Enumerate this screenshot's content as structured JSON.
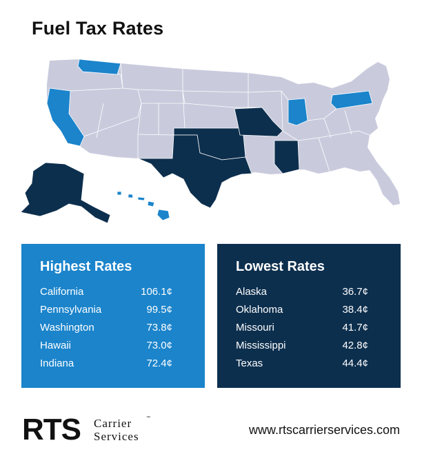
{
  "title": "Fuel Tax Rates",
  "map": {
    "colors": {
      "background_states": "#c9cbdd",
      "highest": "#1b84cb",
      "lowest": "#0d2f4e",
      "borders": "#ffffff"
    },
    "highlighted_states": {
      "highest": [
        "California",
        "Pennsylvania",
        "Washington",
        "Hawaii",
        "Indiana"
      ],
      "lowest": [
        "Alaska",
        "Oklahoma",
        "Missouri",
        "Mississippi",
        "Texas"
      ]
    }
  },
  "highest": {
    "heading": "Highest Rates",
    "rows": [
      {
        "state": "California",
        "rate": "106.1¢"
      },
      {
        "state": "Pennsylvania",
        "rate": "99.5¢"
      },
      {
        "state": "Washington",
        "rate": "73.8¢"
      },
      {
        "state": "Hawaii",
        "rate": "73.0¢"
      },
      {
        "state": "Indiana",
        "rate": "72.4¢"
      }
    ]
  },
  "lowest": {
    "heading": "Lowest Rates",
    "rows": [
      {
        "state": "Alaska",
        "rate": "36.7¢"
      },
      {
        "state": "Oklahoma",
        "rate": "38.4¢"
      },
      {
        "state": "Missouri",
        "rate": "41.7¢"
      },
      {
        "state": "Mississippi",
        "rate": "42.8¢"
      },
      {
        "state": "Texas",
        "rate": "44.4¢"
      }
    ]
  },
  "footer": {
    "logo_main": "RTS",
    "logo_line1": "Carrier",
    "logo_line2": "Services",
    "logo_tm": "™",
    "website": "www.rtscarrierservices.com"
  }
}
